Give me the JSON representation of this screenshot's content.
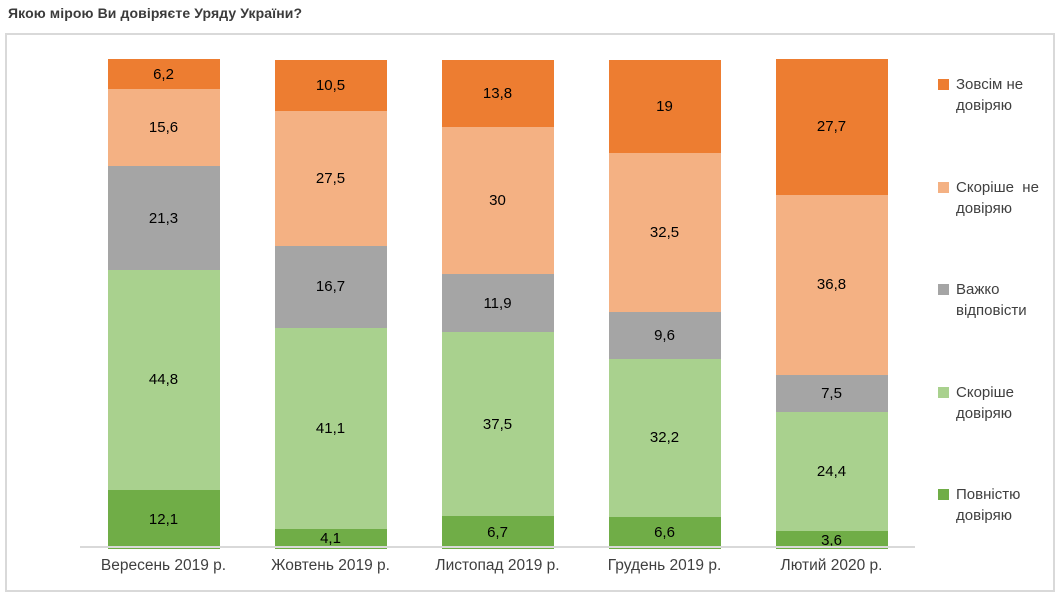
{
  "page": {
    "title": "Якою мірою Ви довіряєте Уряду України?"
  },
  "chart_data": {
    "type": "bar",
    "subtype": "stacked-column-100",
    "title": "Якою мірою Ви довіряєте Уряду України?",
    "categories": [
      "Вересень 2019 р.",
      "Жовтень 2019 р.",
      "Листопад 2019 р.",
      "Грудень 2019 р.",
      "Лютий 2020 р."
    ],
    "series": [
      {
        "name": "Повністю довіряю",
        "color": "#70AD47",
        "values": [
          12.1,
          4.1,
          6.7,
          6.6,
          3.6
        ]
      },
      {
        "name": "Скоріше довіряю",
        "color": "#A9D18E",
        "values": [
          44.8,
          41.1,
          37.5,
          32.2,
          24.4
        ]
      },
      {
        "name": "Важко відповісти",
        "color": "#A5A5A5",
        "values": [
          21.3,
          16.7,
          11.9,
          9.6,
          7.5
        ]
      },
      {
        "name": "Скоріше  не довіряю",
        "color": "#F4B183",
        "values": [
          15.6,
          27.5,
          30,
          32.5,
          36.8
        ]
      },
      {
        "name": "Зовсім не довіряю",
        "color": "#ED7D31",
        "values": [
          6.2,
          10.5,
          13.8,
          19,
          27.7
        ]
      }
    ],
    "legend_order_top_to_bottom": [
      "Зовсім не довіряю",
      "Скоріше  не довіряю",
      "Важко відповісти",
      "Скоріше довіряю",
      "Повністю довіряю"
    ],
    "value_labels": "inside, comma decimal separator",
    "xlabel": "",
    "ylabel": "",
    "ylim": [
      0,
      100
    ],
    "grid": false,
    "legend_position": "right",
    "axis_line_color": "#D9D9D9",
    "frame_border_color": "#D9D9D9"
  }
}
